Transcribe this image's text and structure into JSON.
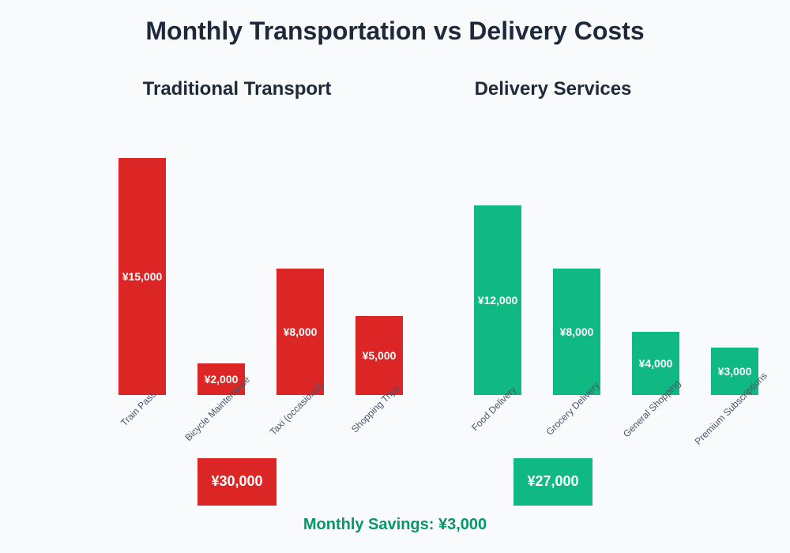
{
  "chart_data": [
    {
      "type": "bar",
      "title": "Traditional Transport",
      "categories": [
        "Train Pass",
        "Bicycle Maintenance",
        "Taxi (occasional)",
        "Shopping Trips"
      ],
      "values": [
        15000,
        2000,
        8000,
        5000
      ],
      "value_labels": [
        "¥15,000",
        "¥2,000",
        "¥8,000",
        "¥5,000"
      ],
      "color": "#dc2626",
      "total_label": "¥30,000"
    },
    {
      "type": "bar",
      "title": "Delivery Services",
      "categories": [
        "Food Delivery",
        "Grocery Delivery",
        "General Shopping",
        "Premium Subscriptions"
      ],
      "values": [
        12000,
        8000,
        4000,
        3000
      ],
      "value_labels": [
        "¥12,000",
        "¥8,000",
        "¥4,000",
        "¥3,000"
      ],
      "color": "#10b981",
      "total_label": "¥27,000"
    }
  ],
  "title": "Monthly Transportation vs Delivery Costs",
  "savings": "Monthly Savings: ¥3,000",
  "colors": {
    "title": "#1e293b",
    "savings": "#059669",
    "labels": "#475569"
  }
}
